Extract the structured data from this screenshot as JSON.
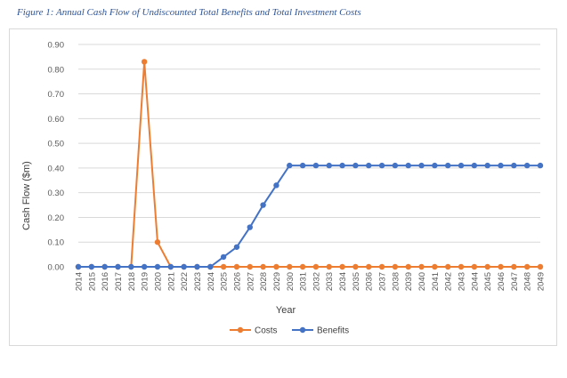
{
  "caption": "Figure 1: Annual Cash Flow of Undiscounted Total Benefits and Total Investment Costs",
  "chart_data": {
    "type": "line",
    "xlabel": "Year",
    "ylabel": "Cash Flow ($m)",
    "ylim": [
      0,
      0.9
    ],
    "yticks": [
      "0.00",
      "0.10",
      "0.20",
      "0.30",
      "0.40",
      "0.50",
      "0.60",
      "0.70",
      "0.80",
      "0.90"
    ],
    "grid": true,
    "legend_position": "bottom",
    "categories": [
      "2014",
      "2015",
      "2016",
      "2017",
      "2018",
      "2019",
      "2020",
      "2021",
      "2022",
      "2023",
      "2024",
      "2025",
      "2026",
      "2027",
      "2028",
      "2029",
      "2030",
      "2031",
      "2032",
      "2033",
      "2034",
      "2035",
      "2036",
      "2037",
      "2038",
      "2039",
      "2040",
      "2041",
      "2042",
      "2043",
      "2044",
      "2045",
      "2046",
      "2047",
      "2048",
      "2049"
    ],
    "series": [
      {
        "name": "Costs",
        "color": "#ed7d31",
        "values": [
          0,
          0,
          0,
          0,
          0,
          0.83,
          0.1,
          0,
          0,
          0,
          0,
          0,
          0,
          0,
          0,
          0,
          0,
          0,
          0,
          0,
          0,
          0,
          0,
          0,
          0,
          0,
          0,
          0,
          0,
          0,
          0,
          0,
          0,
          0,
          0,
          0
        ]
      },
      {
        "name": "Benefits",
        "color": "#4472c4",
        "values": [
          0,
          0,
          0,
          0,
          0,
          0,
          0,
          0,
          0,
          0,
          0,
          0.04,
          0.08,
          0.16,
          0.25,
          0.33,
          0.41,
          0.41,
          0.41,
          0.41,
          0.41,
          0.41,
          0.41,
          0.41,
          0.41,
          0.41,
          0.41,
          0.41,
          0.41,
          0.41,
          0.41,
          0.41,
          0.41,
          0.41,
          0.41,
          0.41
        ]
      }
    ]
  }
}
